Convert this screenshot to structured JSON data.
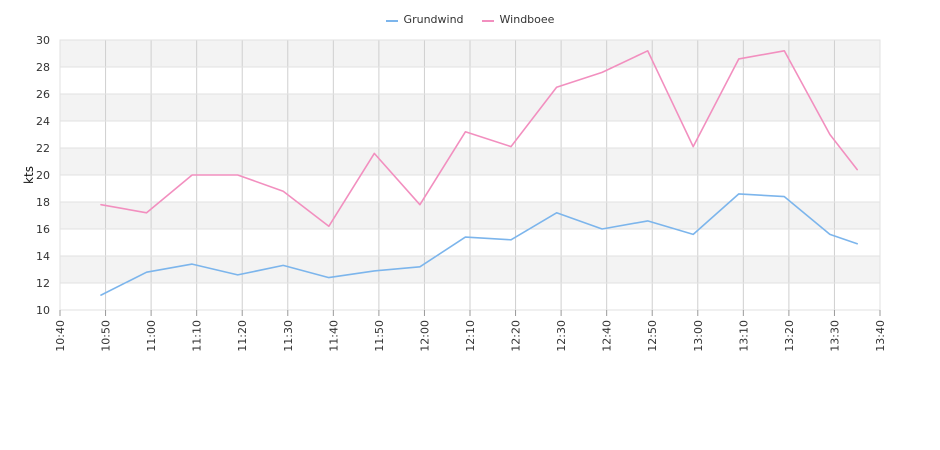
{
  "chart_data": {
    "type": "line",
    "title": "",
    "xlabel": "",
    "ylabel": "kts",
    "ylim": [
      10,
      30
    ],
    "xlim": [
      "10:40",
      "13:40"
    ],
    "yticks": [
      "10",
      "12",
      "14",
      "16",
      "18",
      "20",
      "22",
      "24",
      "26",
      "28",
      "30"
    ],
    "xticks": [
      "10:40",
      "10:50",
      "11:00",
      "11:10",
      "11:20",
      "11:30",
      "11:40",
      "11:50",
      "12:00",
      "12:10",
      "12:20",
      "12:30",
      "12:40",
      "12:50",
      "13:00",
      "13:10",
      "13:20",
      "13:30",
      "13:40"
    ],
    "grid": true,
    "legend_position": "top-center",
    "x": [
      "10:49",
      "10:59",
      "11:09",
      "11:19",
      "11:29",
      "11:39",
      "11:49",
      "11:59",
      "12:09",
      "12:19",
      "12:29",
      "12:39",
      "12:49",
      "12:59",
      "13:09",
      "13:19",
      "13:29",
      "13:35"
    ],
    "series": [
      {
        "name": "Grundwind",
        "color": "#7cb5ec",
        "values": [
          11.1,
          12.8,
          13.4,
          12.6,
          13.3,
          12.4,
          12.9,
          13.2,
          15.4,
          15.2,
          17.2,
          16.0,
          16.6,
          15.6,
          18.6,
          18.4,
          15.6,
          14.9
        ]
      },
      {
        "name": "Windboee",
        "color": "#f28fbf",
        "values": [
          17.8,
          17.2,
          20.0,
          20.0,
          18.8,
          16.2,
          21.6,
          17.8,
          23.2,
          22.1,
          26.5,
          27.6,
          29.2,
          22.1,
          28.6,
          29.2,
          23.0,
          20.4
        ]
      }
    ]
  }
}
